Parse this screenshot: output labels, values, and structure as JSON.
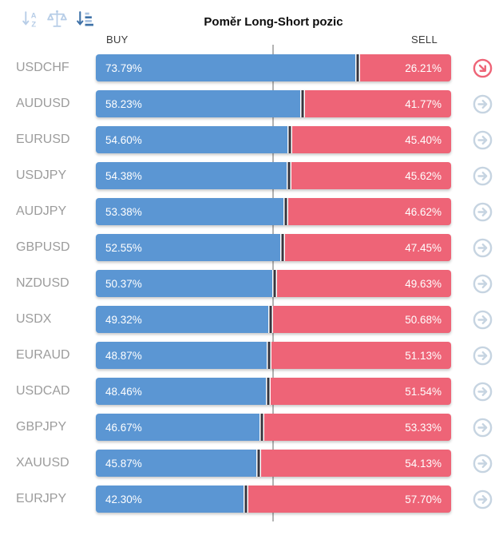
{
  "widget": {
    "title": "Poměr Long-Short pozic",
    "buy_column_label": "BUY",
    "sell_column_label": "SELL"
  },
  "toolbar": {
    "sort_alpha_icon": "sort-alphabetical",
    "balance_icon": "balance-scale",
    "sort_amount_icon": "sort-by-ratio (active)"
  },
  "colors": {
    "buy_bar": "#5b96d3",
    "sell_bar": "#ee6477",
    "segment_divider": "#37363f",
    "pair_label": "#9c9c9c",
    "center_gridline": "#b3b3b3",
    "action_icon": "#c6d4e1",
    "action_icon_active": "#ee6477",
    "toolbar_icon": "#b7cde7",
    "toolbar_icon_active": "#3f72a8"
  },
  "rows": [
    {
      "pair": "USDCHF",
      "buy_label": "73.79%",
      "sell_label": "26.21%",
      "buy_pct": 73.79,
      "sell_pct": 26.21,
      "action_icon_state": "active"
    },
    {
      "pair": "AUDUSD",
      "buy_label": "58.23%",
      "sell_label": "41.77%",
      "buy_pct": 58.23,
      "sell_pct": 41.77,
      "action_icon_state": "default"
    },
    {
      "pair": "EURUSD",
      "buy_label": "54.60%",
      "sell_label": "45.40%",
      "buy_pct": 54.6,
      "sell_pct": 45.4,
      "action_icon_state": "default"
    },
    {
      "pair": "USDJPY",
      "buy_label": "54.38%",
      "sell_label": "45.62%",
      "buy_pct": 54.38,
      "sell_pct": 45.62,
      "action_icon_state": "default"
    },
    {
      "pair": "AUDJPY",
      "buy_label": "53.38%",
      "sell_label": "46.62%",
      "buy_pct": 53.38,
      "sell_pct": 46.62,
      "action_icon_state": "default"
    },
    {
      "pair": "GBPUSD",
      "buy_label": "52.55%",
      "sell_label": "47.45%",
      "buy_pct": 52.55,
      "sell_pct": 47.45,
      "action_icon_state": "default"
    },
    {
      "pair": "NZDUSD",
      "buy_label": "50.37%",
      "sell_label": "49.63%",
      "buy_pct": 50.37,
      "sell_pct": 49.63,
      "action_icon_state": "default"
    },
    {
      "pair": "USDX",
      "buy_label": "49.32%",
      "sell_label": "50.68%",
      "buy_pct": 49.32,
      "sell_pct": 50.68,
      "action_icon_state": "default"
    },
    {
      "pair": "EURAUD",
      "buy_label": "48.87%",
      "sell_label": "51.13%",
      "buy_pct": 48.87,
      "sell_pct": 51.13,
      "action_icon_state": "default"
    },
    {
      "pair": "USDCAD",
      "buy_label": "48.46%",
      "sell_label": "51.54%",
      "buy_pct": 48.46,
      "sell_pct": 51.54,
      "action_icon_state": "default"
    },
    {
      "pair": "GBPJPY",
      "buy_label": "46.67%",
      "sell_label": "53.33%",
      "buy_pct": 46.67,
      "sell_pct": 53.33,
      "action_icon_state": "default"
    },
    {
      "pair": "XAUUSD",
      "buy_label": "45.87%",
      "sell_label": "54.13%",
      "buy_pct": 45.87,
      "sell_pct": 54.13,
      "action_icon_state": "default"
    },
    {
      "pair": "EURJPY",
      "buy_label": "42.30%",
      "sell_label": "57.70%",
      "buy_pct": 42.3,
      "sell_pct": 57.7,
      "action_icon_state": "default"
    }
  ],
  "chart_data": {
    "type": "bar",
    "orientation": "horizontal",
    "stacked": true,
    "title": "Poměr Long-Short pozic",
    "categories": [
      "USDCHF",
      "AUDUSD",
      "EURUSD",
      "USDJPY",
      "AUDJPY",
      "GBPUSD",
      "NZDUSD",
      "USDX",
      "EURAUD",
      "USDCAD",
      "GBPJPY",
      "XAUUSD",
      "EURJPY"
    ],
    "series": [
      {
        "name": "BUY",
        "color": "#5b96d3",
        "values": [
          73.79,
          58.23,
          54.6,
          54.38,
          53.38,
          52.55,
          50.37,
          49.32,
          48.87,
          48.46,
          46.67,
          45.87,
          42.3
        ]
      },
      {
        "name": "SELL",
        "color": "#ee6477",
        "values": [
          26.21,
          41.77,
          45.4,
          45.62,
          46.62,
          47.45,
          49.63,
          50.68,
          51.13,
          51.54,
          53.33,
          54.13,
          57.7
        ]
      }
    ],
    "unit": "%",
    "xlim": [
      0,
      100
    ],
    "legend_position": "top",
    "gridlines": "single vertical line at 50%",
    "sort_order": "descending by BUY"
  }
}
